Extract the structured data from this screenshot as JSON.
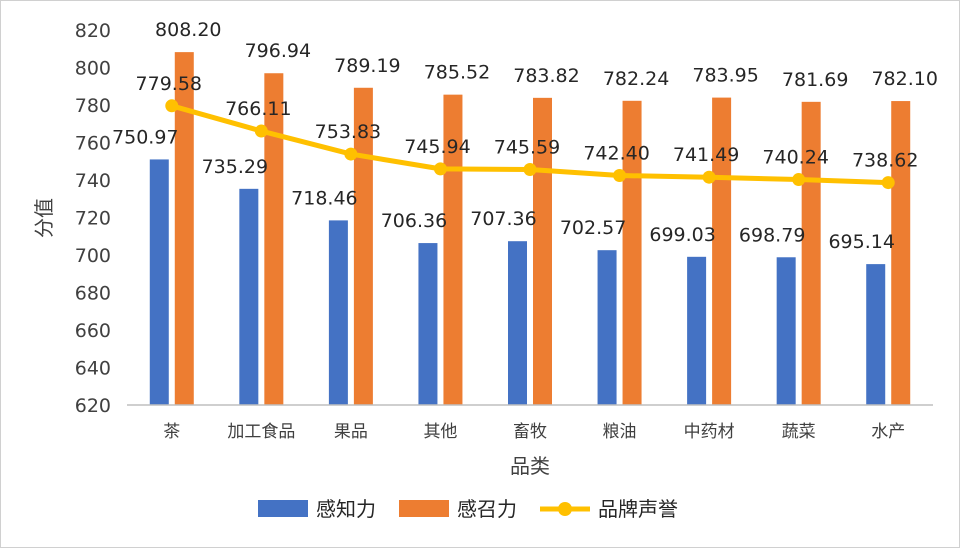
{
  "chart_data": {
    "type": "bar",
    "title": "",
    "xlabel": "品类",
    "ylabel": "分值",
    "ylim": [
      620,
      820
    ],
    "ytick_step": 20,
    "grid": false,
    "legend_position": "bottom",
    "categories": [
      "茶",
      "加工食品",
      "果品",
      "其他",
      "畜牧",
      "粮油",
      "中药材",
      "蔬菜",
      "水产"
    ],
    "series": [
      {
        "name": "感知力",
        "type": "bar",
        "color": "#4472C4",
        "values": [
          750.97,
          735.29,
          718.46,
          706.36,
          707.36,
          702.57,
          699.03,
          698.79,
          695.14
        ]
      },
      {
        "name": "感召力",
        "type": "bar",
        "color": "#ED7D31",
        "values": [
          808.2,
          796.94,
          789.19,
          785.52,
          783.82,
          782.24,
          783.95,
          781.69,
          782.1
        ]
      },
      {
        "name": "品牌声誉",
        "type": "line",
        "color": "#FFC000",
        "values": [
          779.58,
          766.11,
          753.83,
          745.94,
          745.59,
          742.4,
          741.49,
          740.24,
          738.62
        ]
      }
    ]
  }
}
